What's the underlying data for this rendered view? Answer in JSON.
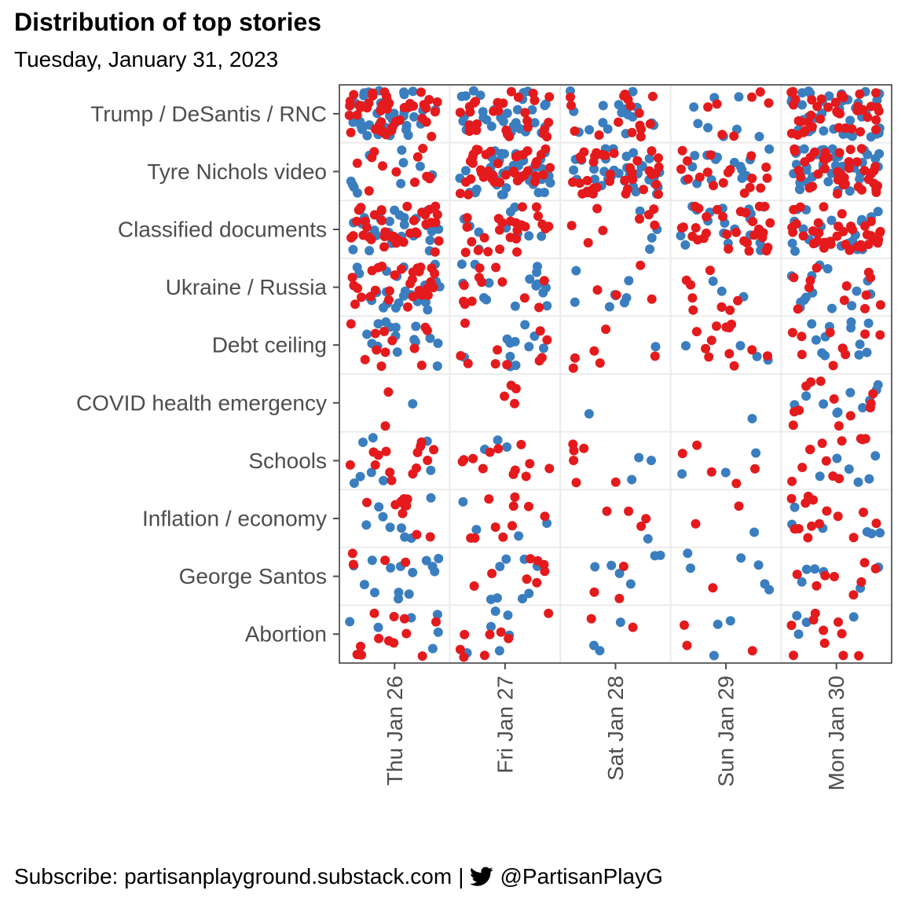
{
  "title": "Distribution of top stories",
  "subtitle": "Tuesday, January 31, 2023",
  "caption": {
    "text_left": "Subscribe: partisanplayground.substack.com",
    "separator": "|",
    "handle": "@PartisanPlayG",
    "icon": "twitter-bird-icon"
  },
  "colors": {
    "blue": "#3a7ebf",
    "red": "#e41a1c",
    "panel_border": "#333333",
    "grid": "#ebebeb",
    "tick": "#4d4d4d"
  },
  "chart_data": {
    "type": "scatter",
    "jitter": true,
    "categories_y": [
      "Trump / DeSantis / RNC",
      "Tyre Nichols video",
      "Classified documents",
      "Ukraine / Russia",
      "Debt ceiling",
      "COVID health emergency",
      "Schools",
      "Inflation / economy",
      "George Santos",
      "Abortion"
    ],
    "categories_x": [
      "Thu Jan 26",
      "Fri Jan 27",
      "Sat Jan 28",
      "Sun Jan 29",
      "Mon Jan 30"
    ],
    "series_colors": [
      "blue",
      "red"
    ],
    "counts": [
      [
        [
          40,
          45
        ],
        [
          30,
          28
        ],
        [
          18,
          16
        ],
        [
          8,
          7
        ],
        [
          38,
          40
        ]
      ],
      [
        [
          10,
          12
        ],
        [
          40,
          40
        ],
        [
          35,
          38
        ],
        [
          16,
          18
        ],
        [
          40,
          40
        ]
      ],
      [
        [
          30,
          38
        ],
        [
          10,
          25
        ],
        [
          4,
          8
        ],
        [
          18,
          30
        ],
        [
          22,
          38
        ]
      ],
      [
        [
          24,
          30
        ],
        [
          15,
          12
        ],
        [
          8,
          4
        ],
        [
          4,
          8
        ],
        [
          14,
          12
        ]
      ],
      [
        [
          16,
          12
        ],
        [
          12,
          10
        ],
        [
          1,
          6
        ],
        [
          4,
          12
        ],
        [
          12,
          10
        ]
      ],
      [
        [
          1,
          2
        ],
        [
          0,
          4
        ],
        [
          1,
          0
        ],
        [
          1,
          0
        ],
        [
          10,
          12
        ]
      ],
      [
        [
          8,
          14
        ],
        [
          3,
          12
        ],
        [
          3,
          6
        ],
        [
          3,
          5
        ],
        [
          6,
          12
        ]
      ],
      [
        [
          8,
          10
        ],
        [
          4,
          10
        ],
        [
          1,
          4
        ],
        [
          1,
          2
        ],
        [
          6,
          14
        ]
      ],
      [
        [
          14,
          4
        ],
        [
          8,
          8
        ],
        [
          6,
          3
        ],
        [
          6,
          1
        ],
        [
          6,
          8
        ]
      ],
      [
        [
          6,
          12
        ],
        [
          6,
          8
        ],
        [
          3,
          2
        ],
        [
          3,
          3
        ],
        [
          4,
          10
        ]
      ]
    ],
    "grid": true,
    "legend": "none"
  }
}
